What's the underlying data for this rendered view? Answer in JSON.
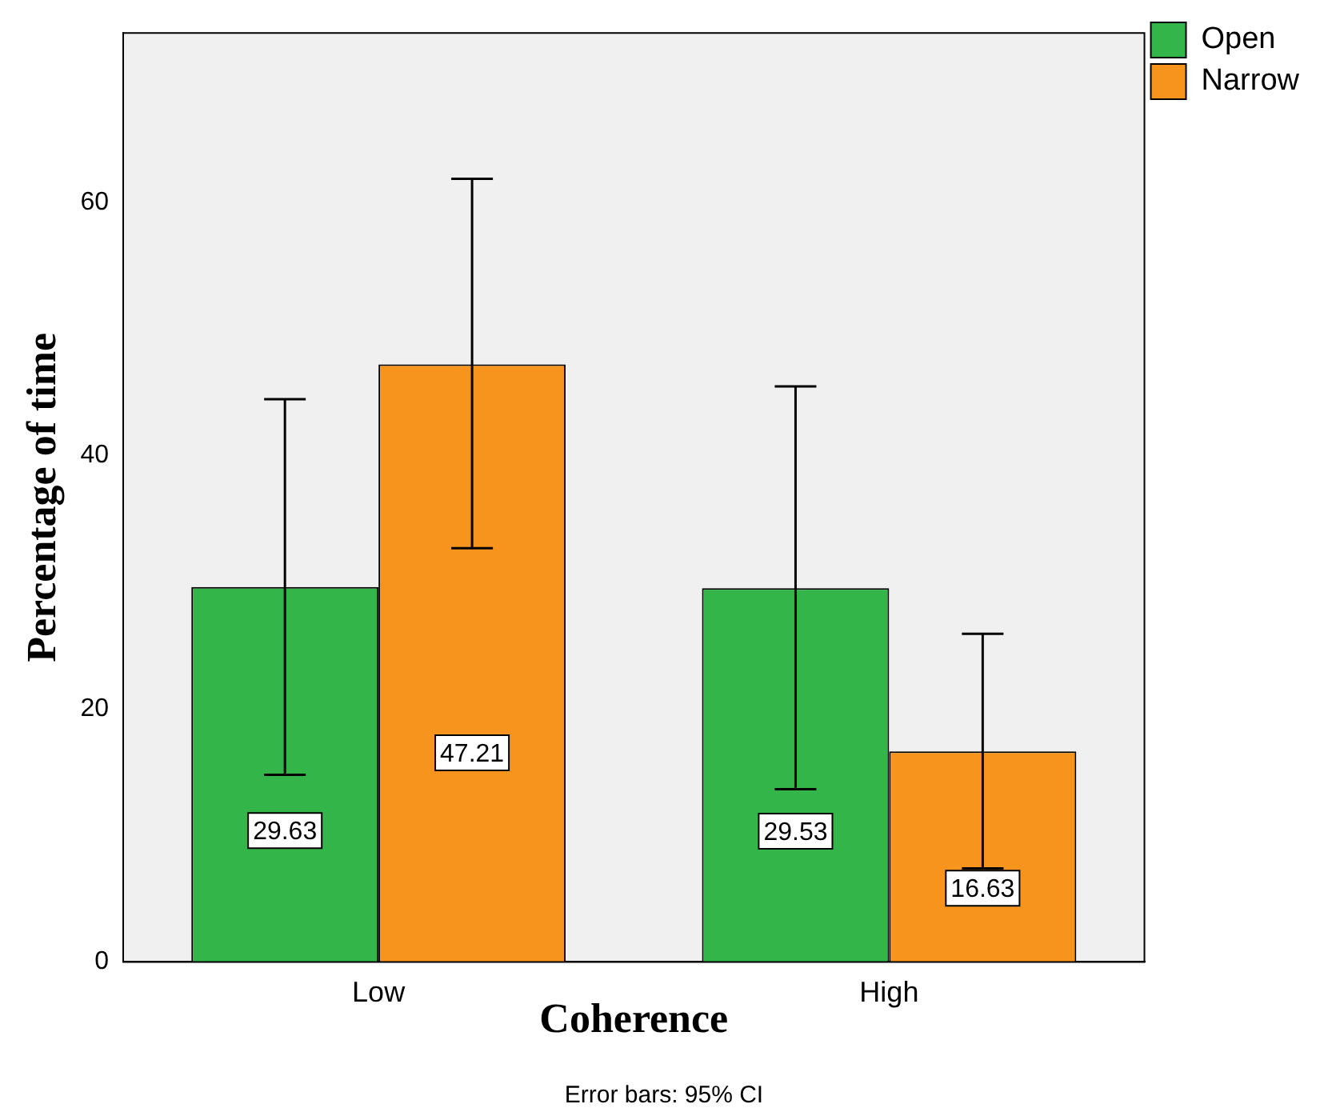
{
  "chart_data": {
    "type": "bar",
    "categories": [
      "Low",
      "High"
    ],
    "series": [
      {
        "name": "Open",
        "color": "#33b54a",
        "values": [
          29.63,
          29.53
        ],
        "errors": [
          [
            14.78,
            44.47
          ],
          [
            13.65,
            45.47
          ]
        ]
      },
      {
        "name": "Narrow",
        "color": "#f7941d",
        "values": [
          47.21,
          16.63
        ],
        "errors": [
          [
            32.69,
            61.88
          ],
          [
            7.39,
            25.93
          ]
        ]
      }
    ],
    "xlabel": "Coherence",
    "ylabel": "Percentage of time",
    "ylim": [
      0,
      73.4
    ],
    "yticks": [
      0,
      20,
      40,
      60
    ],
    "grid": false,
    "legend": "top right",
    "data_labels": true,
    "annotations": [
      "Error bars: 95% CI"
    ]
  }
}
